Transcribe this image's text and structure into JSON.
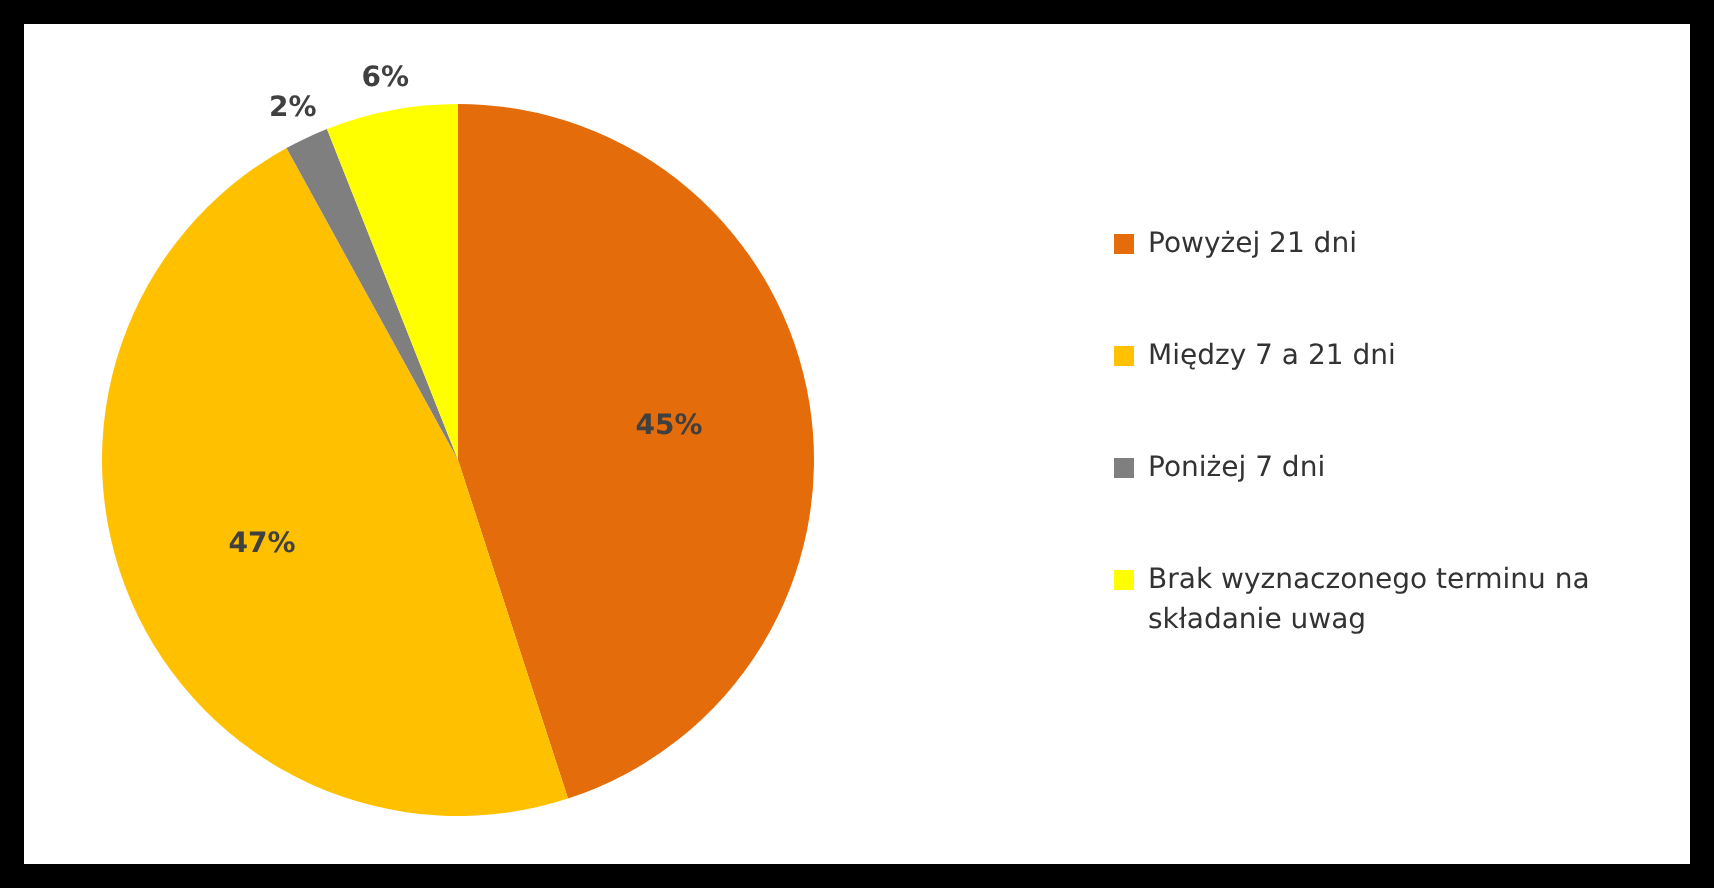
{
  "chart_data": {
    "type": "pie",
    "categories": [
      "Powyżej 21 dni",
      "Między 7 a 21 dni",
      "Poniżej 7 dni",
      "Brak wyznaczonego terminu na składanie uwag"
    ],
    "values": [
      45,
      47,
      2,
      6
    ],
    "colors": [
      "#e46c0a",
      "#ffc000",
      "#7f7f7f",
      "#ffff00"
    ],
    "value_labels": [
      "45%",
      "47%",
      "2%",
      "6%"
    ],
    "legend": "right"
  }
}
